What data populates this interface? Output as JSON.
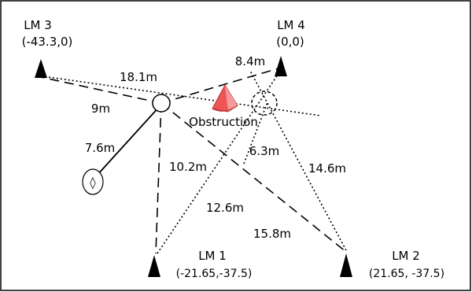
{
  "landmarks": [
    {
      "id": "lm1",
      "name": "LM 1",
      "coord": "(-21.65,-37.5)"
    },
    {
      "id": "lm2",
      "name": "LM 2",
      "coord": "(21.65, -37.5)"
    },
    {
      "id": "lm3",
      "name": "LM 3",
      "coord": "(-43.3,0)"
    },
    {
      "id": "lm4",
      "name": "LM 4",
      "coord": "(0,0)"
    }
  ],
  "obstruction": {
    "label": "Obstruction",
    "color": "#ee5555"
  },
  "target_symbol": "◊",
  "distances": {
    "robot_to_lm3_a": "18.1m",
    "robot_to_lm3_b": "9m",
    "robot_to_tag": "7.6m",
    "robot_to_lm1": "10.2m",
    "estimate_to_lm1": "12.6m",
    "robot_to_lm2": "15.8m",
    "estimate_to_lm4": "8.4m",
    "estimate_to_lm1_b": "6.3m",
    "estimate_to_lm2": "14.6m"
  }
}
